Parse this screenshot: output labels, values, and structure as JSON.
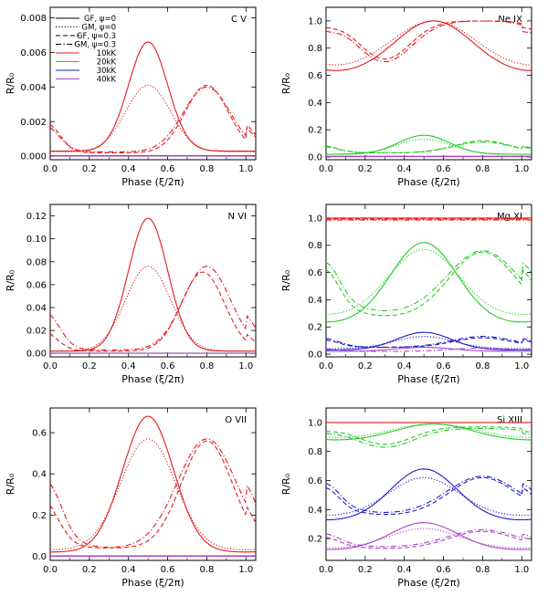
{
  "figure_description": "Six panels: R/R0 ratio versus orbital phase for different ions",
  "chart_data": [
    {
      "type": "line",
      "title": "C V",
      "xlabel": "Phase (ξ/2π)",
      "ylabel": "R/R₀",
      "xlim": [
        0,
        1.05
      ],
      "ylim": [
        -0.0002,
        0.0086
      ],
      "xticks": [
        "0.0",
        "0.2",
        "0.4",
        "0.6",
        "0.8",
        "1.0"
      ],
      "yticks": [
        "0.000",
        "0.002",
        "0.004",
        "0.006",
        "0.008"
      ],
      "xtick_values": [
        0,
        0.2,
        0.4,
        0.6,
        0.8,
        1.0
      ],
      "ytick_values": [
        0,
        0.002,
        0.004,
        0.006,
        0.008
      ],
      "legend": {
        "position": "top-left",
        "entries": [
          {
            "label": "GF, ψ=0",
            "style": "solid",
            "color": "#000000"
          },
          {
            "label": "GM, ψ=0",
            "style": "dotted",
            "color": "#000000"
          },
          {
            "label": "GF, ψ=0.3",
            "style": "dashed",
            "color": "#000000"
          },
          {
            "label": "GM, ψ=0.3",
            "style": "dashdot",
            "color": "#000000"
          },
          {
            "label": "10kK",
            "style": "solid",
            "color": "#e41a1c"
          },
          {
            "label": "20kK",
            "style": "solid",
            "color": "#22cc22"
          },
          {
            "label": "30kK",
            "style": "solid",
            "color": "#1a1acc"
          },
          {
            "label": "40kK",
            "style": "solid",
            "color": "#aa44cc"
          }
        ]
      },
      "series": [
        {
          "name": "10kK GF ψ=0",
          "color": "#e41a1c",
          "style": "solid",
          "shape": "sym",
          "base": 0.0003,
          "peak": 0.0066,
          "center": 0.5,
          "width": 0.1
        },
        {
          "name": "10kK GM ψ=0",
          "color": "#e41a1c",
          "style": "dotted",
          "shape": "sym",
          "base": 0.00025,
          "peak": 0.0041,
          "center": 0.5,
          "width": 0.115
        },
        {
          "name": "10kK GF ψ=0.3",
          "color": "#e41a1c",
          "style": "dashed",
          "shape": "skew",
          "base": 0.0002,
          "peak": 0.0041,
          "center": 0.8,
          "width": 0.11,
          "edge": 0.0013
        },
        {
          "name": "10kK GM ψ=0.3",
          "color": "#e41a1c",
          "style": "dashdot",
          "shape": "skew",
          "base": 0.00025,
          "peak": 0.004,
          "center": 0.8,
          "width": 0.12,
          "edge": 0.0009
        },
        {
          "name": "20kK",
          "color": "#22cc22",
          "style": "solid",
          "shape": "flat",
          "base": 3e-05
        },
        {
          "name": "30kK",
          "color": "#1a1acc",
          "style": "solid",
          "shape": "flat",
          "base": 2e-05
        },
        {
          "name": "40kK",
          "color": "#aa44cc",
          "style": "solid",
          "shape": "flat",
          "base": 1e-05
        }
      ]
    },
    {
      "type": "line",
      "title": "Ne IX",
      "xlabel": "Phase (ξ/2π)",
      "ylabel": "R/R₀",
      "xlim": [
        0,
        1.05
      ],
      "ylim": [
        -0.02,
        1.1
      ],
      "xticks": [
        "0.0",
        "0.2",
        "0.4",
        "0.6",
        "0.8",
        "1.0"
      ],
      "yticks": [
        "0.0",
        "0.2",
        "0.4",
        "0.6",
        "0.8",
        "1.0"
      ],
      "xtick_values": [
        0,
        0.2,
        0.4,
        0.6,
        0.8,
        1.0
      ],
      "ytick_values": [
        0,
        0.2,
        0.4,
        0.6,
        0.8,
        1.0
      ],
      "series": [
        {
          "name": "10kK GF ψ=0",
          "color": "#e41a1c",
          "style": "solid",
          "shape": "sym",
          "base": 0.6,
          "peak": 1.0,
          "center": 0.55,
          "width": 0.2
        },
        {
          "name": "10kK GM ψ=0",
          "color": "#e41a1c",
          "style": "dotted",
          "shape": "sym",
          "base": 0.62,
          "peak": 1.0,
          "center": 0.55,
          "width": 0.22
        },
        {
          "name": "10kK GF ψ=0.3",
          "color": "#e41a1c",
          "style": "dashed",
          "shape": "dip",
          "base": 1.0,
          "peak": 0.72,
          "center": 0.3,
          "width": 0.13,
          "edge": 0.97
        },
        {
          "name": "10kK GM ψ=0.3",
          "color": "#e41a1c",
          "style": "dashdot",
          "shape": "dip",
          "base": 1.0,
          "peak": 0.7,
          "center": 0.3,
          "width": 0.14,
          "edge": 0.95
        },
        {
          "name": "20kK GF ψ=0",
          "color": "#22cc22",
          "style": "solid",
          "shape": "sym",
          "base": 0.02,
          "peak": 0.16,
          "center": 0.5,
          "width": 0.13
        },
        {
          "name": "20kK GM ψ=0",
          "color": "#22cc22",
          "style": "dotted",
          "shape": "sym",
          "base": 0.02,
          "peak": 0.13,
          "center": 0.5,
          "width": 0.14
        },
        {
          "name": "20kK GF ψ=0.3",
          "color": "#22cc22",
          "style": "dashed",
          "shape": "skew",
          "base": 0.03,
          "peak": 0.12,
          "center": 0.8,
          "width": 0.14,
          "edge": 0.06
        },
        {
          "name": "20kK GM ψ=0.3",
          "color": "#22cc22",
          "style": "dashdot",
          "shape": "skew",
          "base": 0.03,
          "peak": 0.11,
          "center": 0.8,
          "width": 0.15,
          "edge": 0.05
        },
        {
          "name": "30kK",
          "color": "#1a1acc",
          "style": "solid",
          "shape": "flat",
          "base": 0.005
        },
        {
          "name": "40kK",
          "color": "#aa44cc",
          "style": "solid",
          "shape": "flat",
          "base": 0.003
        }
      ]
    },
    {
      "type": "line",
      "title": "N VI",
      "xlabel": "Phase (ξ/2π)",
      "ylabel": "R/R₀",
      "xlim": [
        0,
        1.05
      ],
      "ylim": [
        -0.003,
        0.13
      ],
      "xticks": [
        "0.0",
        "0.2",
        "0.4",
        "0.6",
        "0.8",
        "1.0"
      ],
      "yticks": [
        "0.00",
        "0.02",
        "0.04",
        "0.06",
        "0.08",
        "0.10",
        "0.12"
      ],
      "xtick_values": [
        0,
        0.2,
        0.4,
        0.6,
        0.8,
        1.0
      ],
      "ytick_values": [
        0,
        0.02,
        0.04,
        0.06,
        0.08,
        0.1,
        0.12
      ],
      "series": [
        {
          "name": "10kK GF ψ=0",
          "color": "#e41a1c",
          "style": "solid",
          "shape": "sym",
          "base": 0.002,
          "peak": 0.118,
          "center": 0.5,
          "width": 0.1
        },
        {
          "name": "10kK GM ψ=0",
          "color": "#e41a1c",
          "style": "dotted",
          "shape": "sym",
          "base": 0.002,
          "peak": 0.076,
          "center": 0.5,
          "width": 0.115
        },
        {
          "name": "10kK GF ψ=0.3",
          "color": "#e41a1c",
          "style": "dashed",
          "shape": "skew",
          "base": 0.002,
          "peak": 0.071,
          "center": 0.78,
          "width": 0.11,
          "edge": 0.009
        },
        {
          "name": "10kK GM ψ=0.3",
          "color": "#e41a1c",
          "style": "dashdot",
          "shape": "skew",
          "base": 0.003,
          "peak": 0.076,
          "center": 0.8,
          "width": 0.12,
          "edge": 0.02
        },
        {
          "name": "20kK",
          "color": "#22cc22",
          "style": "solid",
          "shape": "flat",
          "base": 0.0003
        },
        {
          "name": "30kK",
          "color": "#1a1acc",
          "style": "solid",
          "shape": "flat",
          "base": 0.0002
        },
        {
          "name": "40kK",
          "color": "#aa44cc",
          "style": "solid",
          "shape": "flat",
          "base": 0.0001
        }
      ]
    },
    {
      "type": "line",
      "title": "Mg XI",
      "xlabel": "Phase (ξ/2π)",
      "ylabel": "R/R₀",
      "xlim": [
        0,
        1.05
      ],
      "ylim": [
        -0.02,
        1.1
      ],
      "xticks": [
        "0.0",
        "0.2",
        "0.4",
        "0.6",
        "0.8",
        "1.0"
      ],
      "yticks": [
        "0.0",
        "0.2",
        "0.4",
        "0.6",
        "0.8",
        "1.0"
      ],
      "xtick_values": [
        0,
        0.2,
        0.4,
        0.6,
        0.8,
        1.0
      ],
      "ytick_values": [
        0,
        0.2,
        0.4,
        0.6,
        0.8,
        1.0
      ],
      "series": [
        {
          "name": "10kK GF ψ=0",
          "color": "#e41a1c",
          "style": "solid",
          "shape": "flat",
          "base": 1.0
        },
        {
          "name": "10kK GM ψ=0",
          "color": "#e41a1c",
          "style": "dotted",
          "shape": "flat",
          "base": 0.99
        },
        {
          "name": "10kK GF ψ=0.3",
          "color": "#e41a1c",
          "style": "dashed",
          "shape": "flat",
          "base": 0.995
        },
        {
          "name": "10kK GM ψ=0.3",
          "color": "#e41a1c",
          "style": "dashdot",
          "shape": "flat",
          "base": 0.985
        },
        {
          "name": "20kK GF ψ=0",
          "color": "#22cc22",
          "style": "solid",
          "shape": "sym",
          "base": 0.22,
          "peak": 0.82,
          "center": 0.5,
          "width": 0.17
        },
        {
          "name": "20kK GM ψ=0",
          "color": "#22cc22",
          "style": "dotted",
          "shape": "sym",
          "base": 0.27,
          "peak": 0.77,
          "center": 0.5,
          "width": 0.18
        },
        {
          "name": "20kK GF ψ=0.3",
          "color": "#22cc22",
          "style": "dashed",
          "shape": "skew",
          "base": 0.27,
          "peak": 0.75,
          "center": 0.8,
          "width": 0.17,
          "edge": 0.49
        },
        {
          "name": "20kK GM ψ=0.3",
          "color": "#22cc22",
          "style": "dashdot",
          "shape": "skew",
          "base": 0.3,
          "peak": 0.76,
          "center": 0.8,
          "width": 0.18,
          "edge": 0.57
        },
        {
          "name": "30kK GF ψ=0",
          "color": "#1a1acc",
          "style": "solid",
          "shape": "sym",
          "base": 0.03,
          "peak": 0.16,
          "center": 0.5,
          "width": 0.14
        },
        {
          "name": "30kK GM ψ=0",
          "color": "#1a1acc",
          "style": "dotted",
          "shape": "sym",
          "base": 0.04,
          "peak": 0.13,
          "center": 0.5,
          "width": 0.15
        },
        {
          "name": "30kK GF ψ=0.3",
          "color": "#1a1acc",
          "style": "dashed",
          "shape": "skew",
          "base": 0.05,
          "peak": 0.12,
          "center": 0.8,
          "width": 0.15,
          "edge": 0.09
        },
        {
          "name": "30kK GM ψ=0.3",
          "color": "#1a1acc",
          "style": "dashdot",
          "shape": "skew",
          "base": 0.05,
          "peak": 0.13,
          "center": 0.8,
          "width": 0.16,
          "edge": 0.1
        },
        {
          "name": "40kK GF ψ=0",
          "color": "#aa44cc",
          "style": "solid",
          "shape": "sym",
          "base": 0.02,
          "peak": 0.05,
          "center": 0.5,
          "width": 0.15
        },
        {
          "name": "40kK GM ψ=0.3",
          "color": "#aa44cc",
          "style": "dashdot",
          "shape": "skew",
          "base": 0.02,
          "peak": 0.045,
          "center": 0.8,
          "width": 0.16,
          "edge": 0.03
        }
      ]
    },
    {
      "type": "line",
      "title": "O VII",
      "xlabel": "Phase (ξ/2π)",
      "ylabel": "R/R₀",
      "xlim": [
        0,
        1.05
      ],
      "ylim": [
        -0.02,
        0.72
      ],
      "xticks": [
        "0.0",
        "0.2",
        "0.4",
        "0.6",
        "0.8",
        "1.0"
      ],
      "yticks": [
        "0.0",
        "0.2",
        "0.4",
        "0.6"
      ],
      "xtick_values": [
        0,
        0.2,
        0.4,
        0.6,
        0.8,
        1.0
      ],
      "ytick_values": [
        0,
        0.2,
        0.4,
        0.6
      ],
      "series": [
        {
          "name": "10kK GF ψ=0",
          "color": "#e41a1c",
          "style": "solid",
          "shape": "sym",
          "base": 0.02,
          "peak": 0.68,
          "center": 0.5,
          "width": 0.13
        },
        {
          "name": "10kK GM ψ=0",
          "color": "#e41a1c",
          "style": "dotted",
          "shape": "sym",
          "base": 0.03,
          "peak": 0.57,
          "center": 0.5,
          "width": 0.14
        },
        {
          "name": "10kK GF ψ=0.3",
          "color": "#e41a1c",
          "style": "dashed",
          "shape": "skew",
          "base": 0.04,
          "peak": 0.56,
          "center": 0.8,
          "width": 0.13,
          "edge": 0.11
        },
        {
          "name": "10kK GM ψ=0.3",
          "color": "#e41a1c",
          "style": "dashdot",
          "shape": "skew",
          "base": 0.04,
          "peak": 0.57,
          "center": 0.8,
          "width": 0.15,
          "edge": 0.2
        },
        {
          "name": "20kK",
          "color": "#22cc22",
          "style": "solid",
          "shape": "flat",
          "base": 0.002
        },
        {
          "name": "30kK",
          "color": "#1a1acc",
          "style": "solid",
          "shape": "flat",
          "base": 0.001
        },
        {
          "name": "40kK",
          "color": "#aa44cc",
          "style": "solid",
          "shape": "flat",
          "base": 0.0005
        }
      ]
    },
    {
      "type": "line",
      "title": "Si XIII",
      "xlabel": "Phase (ξ/2π)",
      "ylabel": "R/R₀",
      "xlim": [
        0,
        1.05
      ],
      "ylim": [
        0.05,
        1.1
      ],
      "xticks": [
        "0.0",
        "0.2",
        "0.4",
        "0.6",
        "0.8",
        "1.0"
      ],
      "yticks": [
        "0.2",
        "0.4",
        "0.6",
        "0.8",
        "1.0"
      ],
      "xtick_values": [
        0,
        0.2,
        0.4,
        0.6,
        0.8,
        1.0
      ],
      "ytick_values": [
        0.2,
        0.4,
        0.6,
        0.8,
        1.0
      ],
      "series": [
        {
          "name": "10kK GF ψ=0",
          "color": "#e41a1c",
          "style": "solid",
          "shape": "flat",
          "base": 1.0
        },
        {
          "name": "20kK GF ψ=0",
          "color": "#22cc22",
          "style": "solid",
          "shape": "sym",
          "base": 0.87,
          "peak": 0.99,
          "center": 0.55,
          "width": 0.2
        },
        {
          "name": "20kK GM ψ=0",
          "color": "#22cc22",
          "style": "dotted",
          "shape": "sym",
          "base": 0.88,
          "peak": 0.99,
          "center": 0.55,
          "width": 0.22
        },
        {
          "name": "20kK GF ψ=0.3",
          "color": "#22cc22",
          "style": "dashed",
          "shape": "dip",
          "base": 0.97,
          "peak": 0.85,
          "center": 0.3,
          "width": 0.14,
          "edge": 0.95
        },
        {
          "name": "20kK GM ψ=0.3",
          "color": "#22cc22",
          "style": "dashdot",
          "shape": "dip",
          "base": 0.96,
          "peak": 0.83,
          "center": 0.3,
          "width": 0.15,
          "edge": 0.94
        },
        {
          "name": "30kK GF ψ=0",
          "color": "#1a1acc",
          "style": "solid",
          "shape": "sym",
          "base": 0.32,
          "peak": 0.68,
          "center": 0.5,
          "width": 0.17
        },
        {
          "name": "30kK GM ψ=0",
          "color": "#1a1acc",
          "style": "dotted",
          "shape": "sym",
          "base": 0.35,
          "peak": 0.62,
          "center": 0.5,
          "width": 0.18
        },
        {
          "name": "30kK GF ψ=0.3",
          "color": "#1a1acc",
          "style": "dashed",
          "shape": "skew",
          "base": 0.36,
          "peak": 0.62,
          "center": 0.8,
          "width": 0.17,
          "edge": 0.48
        },
        {
          "name": "30kK GM ψ=0.3",
          "color": "#1a1acc",
          "style": "dashdot",
          "shape": "skew",
          "base": 0.37,
          "peak": 0.63,
          "center": 0.8,
          "width": 0.18,
          "edge": 0.52
        },
        {
          "name": "40kK GF ψ=0",
          "color": "#aa44cc",
          "style": "solid",
          "shape": "sym",
          "base": 0.12,
          "peak": 0.31,
          "center": 0.5,
          "width": 0.17
        },
        {
          "name": "40kK GM ψ=0",
          "color": "#aa44cc",
          "style": "dotted",
          "shape": "sym",
          "base": 0.13,
          "peak": 0.27,
          "center": 0.5,
          "width": 0.18
        },
        {
          "name": "40kK GF ψ=0.3",
          "color": "#aa44cc",
          "style": "dashed",
          "shape": "skew",
          "base": 0.13,
          "peak": 0.25,
          "center": 0.8,
          "width": 0.17,
          "edge": 0.17
        },
        {
          "name": "40kK GM ψ=0.3",
          "color": "#aa44cc",
          "style": "dashdot",
          "shape": "skew",
          "base": 0.14,
          "peak": 0.26,
          "center": 0.8,
          "width": 0.18,
          "edge": 0.2
        }
      ]
    }
  ]
}
